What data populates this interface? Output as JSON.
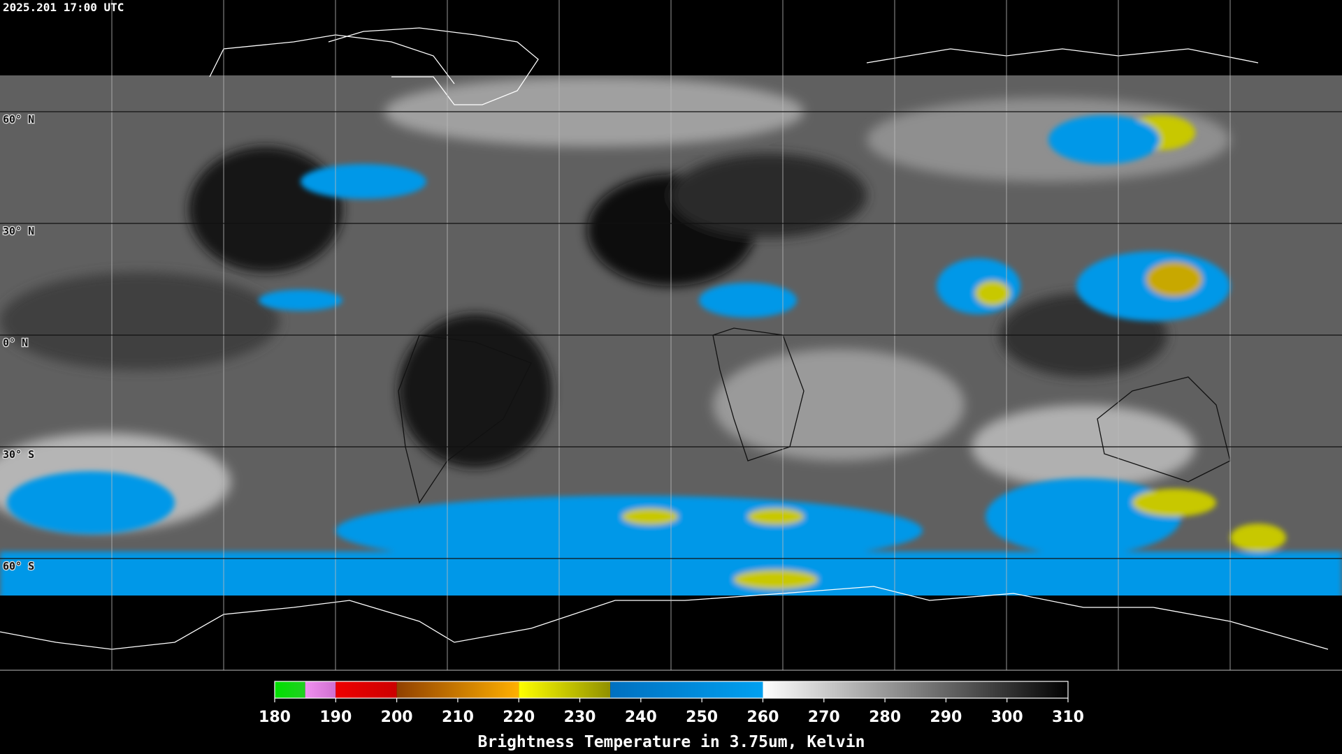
{
  "header": {
    "title": "2025.201 17:00 UTC"
  },
  "map": {
    "latitudes": [
      {
        "value": 60,
        "label": "60° N"
      },
      {
        "value": 30,
        "label": "30° N"
      },
      {
        "value": 0,
        "label": "0° N"
      },
      {
        "value": -30,
        "label": "30° S"
      },
      {
        "value": -60,
        "label": "60° S"
      }
    ]
  },
  "colorbar": {
    "title": "Brightness Temperature in 3.75um, Kelvin",
    "lim": [
      180,
      310
    ],
    "ticks": [
      180,
      190,
      200,
      210,
      220,
      230,
      240,
      250,
      260,
      270,
      280,
      290,
      300,
      310
    ],
    "segments": [
      {
        "from": 180,
        "to": 185,
        "colors": [
          "#00e000",
          "#20d020"
        ]
      },
      {
        "from": 185,
        "to": 190,
        "colors": [
          "#f090f0",
          "#d070d0"
        ]
      },
      {
        "from": 190,
        "to": 200,
        "colors": [
          "#ee0000",
          "#cc0000"
        ]
      },
      {
        "from": 200,
        "to": 220,
        "colors": [
          "#904000",
          "#ffb000"
        ]
      },
      {
        "from": 220,
        "to": 235,
        "colors": [
          "#ffff00",
          "#909000"
        ]
      },
      {
        "from": 235,
        "to": 260,
        "colors": [
          "#0070c0",
          "#00a0f0"
        ]
      },
      {
        "from": 260,
        "to": 310,
        "colors": [
          "#ffffff",
          "#000000"
        ]
      }
    ]
  }
}
